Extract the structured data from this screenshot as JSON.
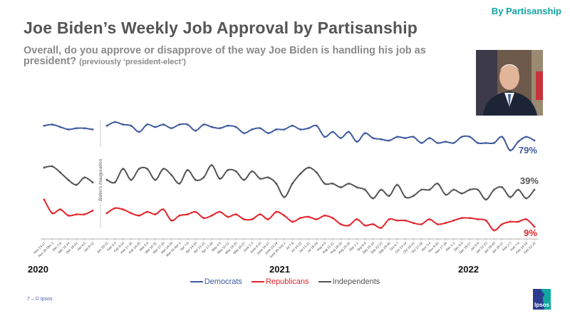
{
  "header": {
    "badge": "By Partisanship",
    "title": "Joe Biden’s Weekly Job Approval by Partisanship",
    "subtitle": "Overall, do you approve or disapprove of the way Joe Biden is handling his job as president?",
    "subtitle_note": "(previously ‘president-elect’)"
  },
  "footer": {
    "page": "7 –  © Ipsos",
    "logo_text": "Ipsos"
  },
  "chart_data": {
    "type": "line",
    "title": "",
    "annotation": "Biden's Inauguration",
    "years": [
      "2020",
      "2021",
      "2022"
    ],
    "pre_inauguration": {
      "categories": [
        "Nov 13-17",
        "Nov 30-Dec 1",
        "Dec 2-8",
        "Dec 11-14",
        "Dec 18-22",
        "Jan 4-5",
        "Jan 8-12"
      ],
      "series": [
        {
          "name": "Democrats",
          "values": [
            91,
            92,
            90,
            88,
            89,
            89,
            88
          ]
        },
        {
          "name": "Republicans",
          "values": [
            31,
            20,
            23,
            18,
            19,
            19,
            22
          ]
        },
        {
          "name": "Independents",
          "values": [
            57,
            58,
            53,
            47,
            43,
            49,
            45
          ]
        }
      ]
    },
    "post_inauguration": {
      "categories": [
        "Jan 20-21",
        "Feb 3-3",
        "Feb 9-10",
        "Feb 17-18",
        "Feb 24-25",
        "Mar 3-4",
        "Mar 10-11",
        "Mar 17-18",
        "Mar 24-25",
        "Mar 31-Apr 1",
        "Apr 7-8",
        "Apr 14-15",
        "Apr 21-22",
        "Apr 27-28",
        "May 4-5",
        "May 11-12",
        "May 19-20",
        "May 25-27",
        "June 2-3",
        "June 9-10",
        "June 16-17",
        "June 23-24",
        "June 30-July 1",
        "Jul 7-8",
        "Jul 14-15",
        "Jul 21-22",
        "Jul 28-29",
        "Aug 4-5",
        "Aug 11-12",
        "Aug 18-19",
        "Aug 25-26",
        "Sep 1-2",
        "Sep 8-9",
        "Sep 15-16",
        "Sep 22-23",
        "Sep 29-30",
        "Oct 6-7",
        "Oct 13-14",
        "Oct 20-21",
        "Oct 27-28",
        "Nov 3-4",
        "Nov 9-10",
        "Nov 17-18",
        "Dec 1-2",
        "Dec 8-9",
        "Dec 15-17",
        "Jan 5-6",
        "Jan 12-13",
        "Jan 19-20",
        "Jan 26-27",
        "Feb 2-3",
        "Feb 7-8",
        "Feb 14-15",
        "Feb 22-23"
      ],
      "series": [
        {
          "name": "Democrats",
          "values": [
            91,
            94,
            92,
            91,
            86,
            92,
            90,
            92,
            89,
            92,
            92,
            87,
            92,
            90,
            89,
            91,
            90,
            85,
            88,
            89,
            85,
            88,
            88,
            91,
            88,
            89,
            91,
            82,
            86,
            81,
            86,
            78,
            85,
            81,
            80,
            79,
            82,
            81,
            82,
            77,
            81,
            77,
            78,
            77,
            82,
            82,
            77,
            77,
            77,
            82,
            71,
            78,
            82,
            79
          ]
        },
        {
          "name": "Republicans",
          "values": [
            20,
            24,
            23,
            20,
            18,
            21,
            19,
            23,
            14,
            18,
            19,
            21,
            16,
            18,
            21,
            17,
            19,
            15,
            15,
            19,
            15,
            21,
            18,
            13,
            16,
            17,
            15,
            18,
            16,
            11,
            10,
            15,
            10,
            11,
            8,
            15,
            14,
            14,
            12,
            11,
            15,
            11,
            12,
            14,
            16,
            16,
            15,
            14,
            6,
            11,
            13,
            13,
            15,
            9
          ]
        },
        {
          "name": "Independents",
          "values": [
            47,
            45,
            56,
            47,
            56,
            56,
            47,
            56,
            51,
            44,
            55,
            47,
            49,
            59,
            48,
            55,
            54,
            47,
            54,
            48,
            49,
            44,
            33,
            44,
            52,
            57,
            53,
            44,
            44,
            41,
            44,
            41,
            39,
            32,
            39,
            34,
            43,
            33,
            34,
            39,
            39,
            44,
            35,
            39,
            36,
            39,
            39,
            31,
            39,
            41,
            33,
            39,
            32,
            39
          ]
        }
      ]
    },
    "end_labels": {
      "Democrats": "79%",
      "Republicans": "9%",
      "Independents": "39%"
    },
    "colors": {
      "Democrats": "#3f5a9e",
      "Republicans": "#e0242b",
      "Independents": "#555555"
    },
    "legend": [
      "Democrats",
      "Republicans",
      "Independents"
    ],
    "legend_placement": "bottom",
    "grid": false
  }
}
